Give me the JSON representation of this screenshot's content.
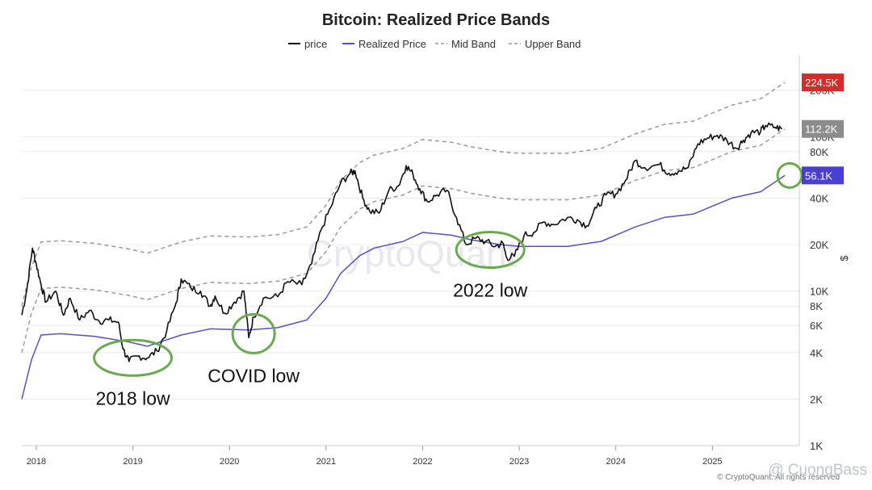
{
  "chart_data": {
    "type": "line",
    "title": "Bitcoin: Realized Price Bands",
    "y_scale": "log",
    "ylabel": "$",
    "ylim": [
      1000,
      300000
    ],
    "xlim": [
      2017.85,
      2025.9
    ],
    "legend": {
      "placement": "top-center",
      "entries": [
        "price",
        "Realized Price",
        "Mid Band",
        "Upper Band"
      ]
    },
    "x_ticks": [
      {
        "label": "2018",
        "value": 2018
      },
      {
        "label": "2019",
        "value": 2019
      },
      {
        "label": "2020",
        "value": 2020
      },
      {
        "label": "2021",
        "value": 2021
      },
      {
        "label": "2022",
        "value": 2022
      },
      {
        "label": "2023",
        "value": 2023
      },
      {
        "label": "2024",
        "value": 2024
      },
      {
        "label": "2025",
        "value": 2025
      }
    ],
    "y_ticks": [
      {
        "label": "1K",
        "value": 1000
      },
      {
        "label": "2K",
        "value": 2000
      },
      {
        "label": "4K",
        "value": 4000
      },
      {
        "label": "6K",
        "value": 6000
      },
      {
        "label": "8K",
        "value": 8000
      },
      {
        "label": "10K",
        "value": 10000
      },
      {
        "label": "20K",
        "value": 20000
      },
      {
        "label": "40K",
        "value": 40000
      },
      {
        "label": "80K",
        "value": 80000
      },
      {
        "label": "100K",
        "value": 100000
      },
      {
        "label": "200K",
        "value": 200000
      }
    ],
    "series": [
      {
        "name": "Realized Price",
        "color": "#5b4fc4",
        "style": "solid",
        "points": [
          [
            2017.85,
            2000
          ],
          [
            2017.95,
            3600
          ],
          [
            2018.05,
            5200
          ],
          [
            2018.25,
            5300
          ],
          [
            2018.6,
            5100
          ],
          [
            2018.95,
            4700
          ],
          [
            2019.15,
            4400
          ],
          [
            2019.5,
            5200
          ],
          [
            2019.8,
            5700
          ],
          [
            2020.2,
            5600
          ],
          [
            2020.5,
            5800
          ],
          [
            2020.8,
            6500
          ],
          [
            2021.0,
            9000
          ],
          [
            2021.15,
            13000
          ],
          [
            2021.35,
            17000
          ],
          [
            2021.5,
            19000
          ],
          [
            2021.8,
            21000
          ],
          [
            2022.0,
            24000
          ],
          [
            2022.3,
            23000
          ],
          [
            2022.5,
            21500
          ],
          [
            2022.8,
            20000
          ],
          [
            2023.0,
            19500
          ],
          [
            2023.5,
            19500
          ],
          [
            2023.85,
            21000
          ],
          [
            2024.2,
            26000
          ],
          [
            2024.5,
            30000
          ],
          [
            2024.8,
            31500
          ],
          [
            2025.2,
            40000
          ],
          [
            2025.5,
            44000
          ],
          [
            2025.75,
            56100
          ]
        ]
      },
      {
        "name": "Mid Band",
        "color": "#9a9a9a",
        "style": "dashed",
        "points": [
          [
            2017.85,
            4000
          ],
          [
            2017.95,
            7200
          ],
          [
            2018.05,
            10400
          ],
          [
            2018.25,
            10600
          ],
          [
            2018.6,
            10200
          ],
          [
            2018.95,
            9400
          ],
          [
            2019.15,
            8800
          ],
          [
            2019.5,
            10400
          ],
          [
            2019.8,
            11400
          ],
          [
            2020.2,
            11200
          ],
          [
            2020.5,
            11600
          ],
          [
            2020.8,
            13000
          ],
          [
            2021.0,
            18000
          ],
          [
            2021.15,
            26000
          ],
          [
            2021.35,
            34000
          ],
          [
            2021.5,
            38000
          ],
          [
            2021.8,
            42000
          ],
          [
            2022.0,
            48000
          ],
          [
            2022.3,
            46000
          ],
          [
            2022.5,
            43000
          ],
          [
            2022.8,
            40000
          ],
          [
            2023.0,
            39000
          ],
          [
            2023.5,
            39000
          ],
          [
            2023.85,
            42000
          ],
          [
            2024.2,
            52000
          ],
          [
            2024.5,
            60000
          ],
          [
            2024.8,
            63000
          ],
          [
            2025.2,
            80000
          ],
          [
            2025.5,
            88000
          ],
          [
            2025.75,
            112200
          ]
        ]
      },
      {
        "name": "Upper Band",
        "color": "#9a9a9a",
        "style": "dashed",
        "points": [
          [
            2017.85,
            8000
          ],
          [
            2017.95,
            14400
          ],
          [
            2018.05,
            20800
          ],
          [
            2018.25,
            21200
          ],
          [
            2018.6,
            20400
          ],
          [
            2018.95,
            18800
          ],
          [
            2019.15,
            17600
          ],
          [
            2019.5,
            20800
          ],
          [
            2019.8,
            22800
          ],
          [
            2020.2,
            22400
          ],
          [
            2020.5,
            23200
          ],
          [
            2020.8,
            26000
          ],
          [
            2021.0,
            36000
          ],
          [
            2021.15,
            52000
          ],
          [
            2021.35,
            68000
          ],
          [
            2021.5,
            76000
          ],
          [
            2021.8,
            84000
          ],
          [
            2022.0,
            96000
          ],
          [
            2022.3,
            92000
          ],
          [
            2022.5,
            86000
          ],
          [
            2022.8,
            80000
          ],
          [
            2023.0,
            78000
          ],
          [
            2023.5,
            78000
          ],
          [
            2023.85,
            84000
          ],
          [
            2024.2,
            104000
          ],
          [
            2024.5,
            120000
          ],
          [
            2024.8,
            126000
          ],
          [
            2025.2,
            160000
          ],
          [
            2025.5,
            176000
          ],
          [
            2025.75,
            224500
          ]
        ]
      },
      {
        "name": "price",
        "color": "#111111",
        "style": "solid",
        "points": [
          [
            2017.85,
            7000
          ],
          [
            2017.9,
            10000
          ],
          [
            2017.96,
            19000
          ],
          [
            2018.0,
            15000
          ],
          [
            2018.05,
            11000
          ],
          [
            2018.1,
            8500
          ],
          [
            2018.2,
            10000
          ],
          [
            2018.28,
            7000
          ],
          [
            2018.35,
            9000
          ],
          [
            2018.45,
            6500
          ],
          [
            2018.55,
            7500
          ],
          [
            2018.65,
            6400
          ],
          [
            2018.75,
            6500
          ],
          [
            2018.85,
            6300
          ],
          [
            2018.9,
            4200
          ],
          [
            2018.96,
            3500
          ],
          [
            2019.05,
            3800
          ],
          [
            2019.15,
            3700
          ],
          [
            2019.25,
            4100
          ],
          [
            2019.35,
            5500
          ],
          [
            2019.45,
            8500
          ],
          [
            2019.5,
            12000
          ],
          [
            2019.6,
            10500
          ],
          [
            2019.7,
            10000
          ],
          [
            2019.8,
            8000
          ],
          [
            2019.85,
            9300
          ],
          [
            2019.95,
            7200
          ],
          [
            2020.05,
            8500
          ],
          [
            2020.15,
            10000
          ],
          [
            2020.2,
            5000
          ],
          [
            2020.25,
            6800
          ],
          [
            2020.35,
            9000
          ],
          [
            2020.5,
            9200
          ],
          [
            2020.6,
            11500
          ],
          [
            2020.75,
            11000
          ],
          [
            2020.85,
            15000
          ],
          [
            2020.95,
            25000
          ],
          [
            2021.05,
            35000
          ],
          [
            2021.15,
            50000
          ],
          [
            2021.25,
            58000
          ],
          [
            2021.3,
            60000
          ],
          [
            2021.38,
            40000
          ],
          [
            2021.45,
            33000
          ],
          [
            2021.55,
            32000
          ],
          [
            2021.65,
            45000
          ],
          [
            2021.75,
            48000
          ],
          [
            2021.83,
            65000
          ],
          [
            2021.9,
            57000
          ],
          [
            2021.97,
            46000
          ],
          [
            2022.05,
            38000
          ],
          [
            2022.15,
            42000
          ],
          [
            2022.25,
            45000
          ],
          [
            2022.35,
            30000
          ],
          [
            2022.45,
            20000
          ],
          [
            2022.55,
            22000
          ],
          [
            2022.65,
            21000
          ],
          [
            2022.75,
            19500
          ],
          [
            2022.83,
            20500
          ],
          [
            2022.87,
            16500
          ],
          [
            2022.95,
            16800
          ],
          [
            2023.05,
            23000
          ],
          [
            2023.15,
            24000
          ],
          [
            2023.25,
            28000
          ],
          [
            2023.35,
            27000
          ],
          [
            2023.5,
            30000
          ],
          [
            2023.6,
            29000
          ],
          [
            2023.7,
            26500
          ],
          [
            2023.8,
            34500
          ],
          [
            2023.9,
            42000
          ],
          [
            2024.0,
            42500
          ],
          [
            2024.1,
            52000
          ],
          [
            2024.2,
            70000
          ],
          [
            2024.3,
            63000
          ],
          [
            2024.45,
            66000
          ],
          [
            2024.55,
            58000
          ],
          [
            2024.65,
            60000
          ],
          [
            2024.75,
            63000
          ],
          [
            2024.85,
            90000
          ],
          [
            2024.95,
            98000
          ],
          [
            2025.05,
            102000
          ],
          [
            2025.15,
            95000
          ],
          [
            2025.25,
            84000
          ],
          [
            2025.32,
            95000
          ],
          [
            2025.4,
            106000
          ],
          [
            2025.5,
            108000
          ],
          [
            2025.55,
            118000
          ],
          [
            2025.65,
            115000
          ],
          [
            2025.72,
            112000
          ]
        ]
      }
    ],
    "price_badges": [
      {
        "label": "224.5K",
        "value": 224500,
        "color": "#d62b2b"
      },
      {
        "label": "112.2K",
        "value": 112200,
        "color": "#8c8c8c"
      },
      {
        "label": "56.1K",
        "value": 56100,
        "color": "#4a3fcf"
      }
    ],
    "annotations": [
      {
        "label": "2018 low",
        "x": 2019.0,
        "y": 3700
      },
      {
        "label": "COVID low",
        "x": 2020.25,
        "y": 5300
      },
      {
        "label": "2022 low",
        "x": 2022.7,
        "y": 18500
      }
    ],
    "highlight_circles": [
      {
        "x": 2019.0,
        "y": 3700,
        "color": "#6aaa4f"
      },
      {
        "x": 2020.25,
        "y": 5300,
        "color": "#6aaa4f"
      },
      {
        "x": 2022.7,
        "y": 18500,
        "color": "#6aaa4f"
      },
      {
        "x": 2025.8,
        "y": 56100,
        "color": "#6aaa4f"
      }
    ],
    "watermark": "CryptoQuant",
    "credit": "© CryptoQuant. All rights reserved",
    "user_watermark": "@ CuongBass"
  }
}
